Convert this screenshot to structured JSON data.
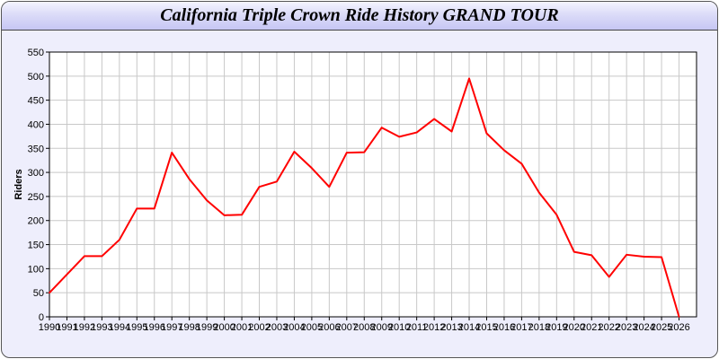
{
  "chart_data": {
    "type": "line",
    "title": "California Triple Crown Ride History GRAND TOUR",
    "xlabel": "",
    "ylabel": "Riders",
    "x": [
      1990,
      1991,
      1992,
      1993,
      1994,
      1995,
      1996,
      1997,
      1998,
      1999,
      2000,
      2001,
      2002,
      2003,
      2004,
      2005,
      2006,
      2007,
      2008,
      2009,
      2010,
      2011,
      2012,
      2013,
      2014,
      2015,
      2016,
      2017,
      2018,
      2019,
      2020,
      2021,
      2022,
      2023,
      2024,
      2025,
      2026
    ],
    "series": [
      {
        "values": [
          50,
          88,
          126,
          126,
          160,
          225,
          225,
          341,
          286,
          242,
          211,
          212,
          270,
          281,
          343,
          309,
          270,
          341,
          342,
          393,
          374,
          383,
          411,
          385,
          495,
          381,
          346,
          318,
          258,
          212,
          135,
          128,
          83,
          129,
          125,
          124,
          0
        ],
        "color": "#ff0000"
      }
    ],
    "xlim": [
      1990,
      2027
    ],
    "ylim": [
      0,
      550
    ],
    "yticks": [
      0,
      50,
      100,
      150,
      200,
      250,
      300,
      350,
      400,
      450,
      500,
      550
    ],
    "grid": true,
    "legend": "none"
  }
}
